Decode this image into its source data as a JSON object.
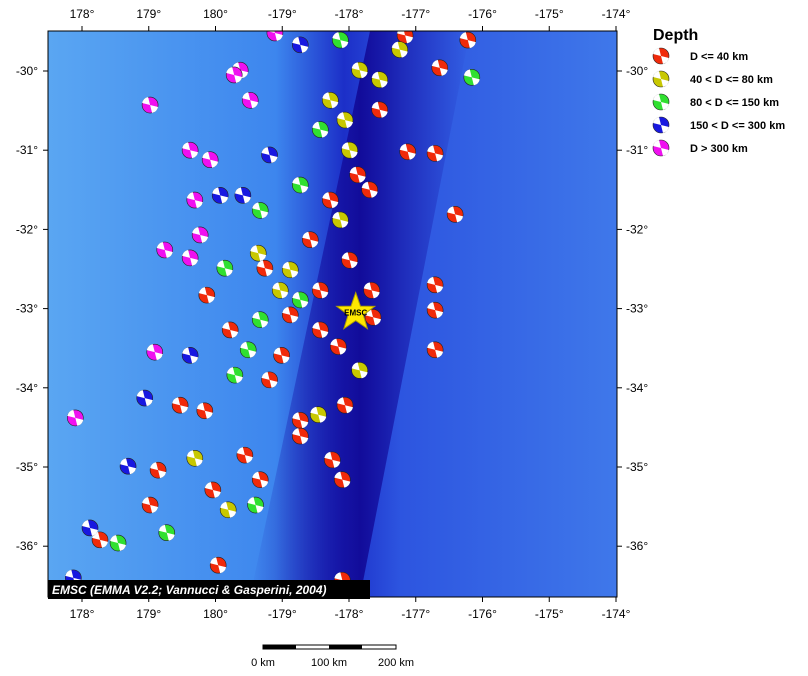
{
  "map": {
    "xticks": [
      {
        "value": 178,
        "label": "178°"
      },
      {
        "value": 179,
        "label": "179°"
      },
      {
        "value": 180,
        "label": "180°"
      },
      {
        "value": -179,
        "label": "-179°"
      },
      {
        "value": -178,
        "label": "-178°"
      },
      {
        "value": -177,
        "label": "-177°"
      },
      {
        "value": -176,
        "label": "-176°"
      },
      {
        "value": -175,
        "label": "-175°"
      },
      {
        "value": -174,
        "label": "-174°"
      }
    ],
    "yticks": [
      {
        "value": -30,
        "label": "-30°"
      },
      {
        "value": -31,
        "label": "-31°"
      },
      {
        "value": -32,
        "label": "-32°"
      },
      {
        "value": -33,
        "label": "-33°"
      },
      {
        "value": -34,
        "label": "-34°"
      },
      {
        "value": -35,
        "label": "-35°"
      },
      {
        "value": -36,
        "label": "-36°"
      }
    ],
    "credit": "EMSC (EMMA V2.2; Vannucci & Gasperini, 2004)",
    "star": {
      "label": "EMSC",
      "lon": -177.9,
      "lat": -33.05
    },
    "legend": {
      "title": "Depth",
      "entries": [
        {
          "label": "D <= 40 km",
          "color": "#f02a0a"
        },
        {
          "label": "40 < D <= 80 km",
          "color": "#c8c800"
        },
        {
          "label": "80 < D <= 150 km",
          "color": "#30e030"
        },
        {
          "label": "150 < D <= 300 km",
          "color": "#1818e0"
        },
        {
          "label": "D > 300 km",
          "color": "#f010f0"
        }
      ]
    },
    "scale_bar": [
      "0 km",
      "100 km",
      "200 km"
    ],
    "events": [
      [
        -177.16,
        -29.55,
        0
      ],
      [
        -176.22,
        -29.61,
        0
      ],
      [
        -176.16,
        -30.08,
        2
      ],
      [
        -176.64,
        -29.96,
        0
      ],
      [
        -178.13,
        -29.61,
        2
      ],
      [
        -177.84,
        -29.99,
        1
      ],
      [
        -178.28,
        -30.37,
        1
      ],
      [
        -177.54,
        -30.49,
        0
      ],
      [
        -177.99,
        -31.0,
        1
      ],
      [
        -178.43,
        -30.74,
        2
      ],
      [
        -177.12,
        -31.02,
        0
      ],
      [
        -176.71,
        -31.04,
        0
      ],
      [
        -176.41,
        -31.81,
        0
      ],
      [
        -177.69,
        -31.5,
        0
      ],
      [
        -178.13,
        -31.88,
        1
      ],
      [
        -178.58,
        -32.13,
        0
      ],
      [
        -177.99,
        -32.39,
        0
      ],
      [
        -179.33,
        -31.76,
        2
      ],
      [
        -178.73,
        -31.44,
        2
      ],
      [
        -179.19,
        -31.06,
        3
      ],
      [
        -179.48,
        -30.37,
        4
      ],
      [
        -179.63,
        -29.99,
        4
      ],
      [
        -179.11,
        -29.52,
        4
      ],
      [
        -178.73,
        -29.67,
        3
      ],
      [
        -179.72,
        -30.05,
        4
      ],
      [
        179.02,
        -30.43,
        4
      ],
      [
        179.62,
        -31.0,
        4
      ],
      [
        179.92,
        -31.12,
        4
      ],
      [
        179.69,
        -31.63,
        4
      ],
      [
        -179.93,
        -31.57,
        3
      ],
      [
        -179.59,
        -31.57,
        3
      ],
      [
        179.24,
        -32.26,
        4
      ],
      [
        179.77,
        -32.07,
        4
      ],
      [
        179.62,
        -32.36,
        4
      ],
      [
        -179.36,
        -32.3,
        1
      ],
      [
        -179.86,
        -32.49,
        2
      ],
      [
        179.87,
        -32.83,
        0
      ],
      [
        -179.03,
        -32.77,
        1
      ],
      [
        -178.73,
        -32.89,
        2
      ],
      [
        -178.43,
        -32.77,
        0
      ],
      [
        -177.66,
        -32.77,
        0
      ],
      [
        -176.71,
        -32.7,
        0
      ],
      [
        -176.71,
        -33.02,
        0
      ],
      [
        -177.64,
        -33.11,
        0
      ],
      [
        -176.71,
        -33.52,
        0
      ],
      [
        -178.16,
        -33.48,
        0
      ],
      [
        -177.84,
        -33.78,
        1
      ],
      [
        -179.01,
        -33.59,
        0
      ],
      [
        -179.51,
        -33.52,
        2
      ],
      [
        179.09,
        -33.55,
        4
      ],
      [
        179.62,
        -33.59,
        3
      ],
      [
        -179.71,
        -33.84,
        2
      ],
      [
        179.47,
        -34.22,
        0
      ],
      [
        178.94,
        -34.13,
        3
      ],
      [
        177.9,
        -34.38,
        4
      ],
      [
        179.84,
        -34.29,
        0
      ],
      [
        -179.19,
        -33.9,
        0
      ],
      [
        -178.73,
        -34.41,
        0
      ],
      [
        -178.46,
        -34.34,
        1
      ],
      [
        -178.06,
        -34.22,
        0
      ],
      [
        -178.73,
        -34.61,
        0
      ],
      [
        179.69,
        -34.89,
        1
      ],
      [
        178.69,
        -34.99,
        3
      ],
      [
        179.14,
        -35.04,
        0
      ],
      [
        -179.56,
        -34.85,
        0
      ],
      [
        -178.25,
        -34.91,
        0
      ],
      [
        -178.1,
        -35.16,
        0
      ],
      [
        -179.33,
        -35.16,
        0
      ],
      [
        179.96,
        -35.29,
        0
      ],
      [
        179.02,
        -35.48,
        0
      ],
      [
        -179.81,
        -35.54,
        1
      ],
      [
        -179.4,
        -35.48,
        2
      ],
      [
        178.54,
        -35.96,
        2
      ],
      [
        178.27,
        -35.92,
        0
      ],
      [
        178.12,
        -35.77,
        3
      ],
      [
        -179.96,
        -36.24,
        0
      ],
      [
        -178.1,
        -36.43,
        0
      ],
      [
        179.27,
        -35.83,
        2
      ],
      [
        177.87,
        -36.4,
        3
      ],
      [
        -177.24,
        -29.73,
        1
      ],
      [
        -177.54,
        -30.11,
        1
      ],
      [
        -178.06,
        -30.62,
        1
      ],
      [
        -177.87,
        -31.31,
        0
      ],
      [
        -178.28,
        -31.63,
        0
      ],
      [
        -178.43,
        -33.27,
        0
      ],
      [
        -178.88,
        -33.08,
        0
      ],
      [
        -179.33,
        -33.14,
        2
      ],
      [
        -179.78,
        -33.27,
        0
      ],
      [
        -179.26,
        -32.49,
        0
      ],
      [
        -178.88,
        -32.51,
        1
      ]
    ]
  }
}
